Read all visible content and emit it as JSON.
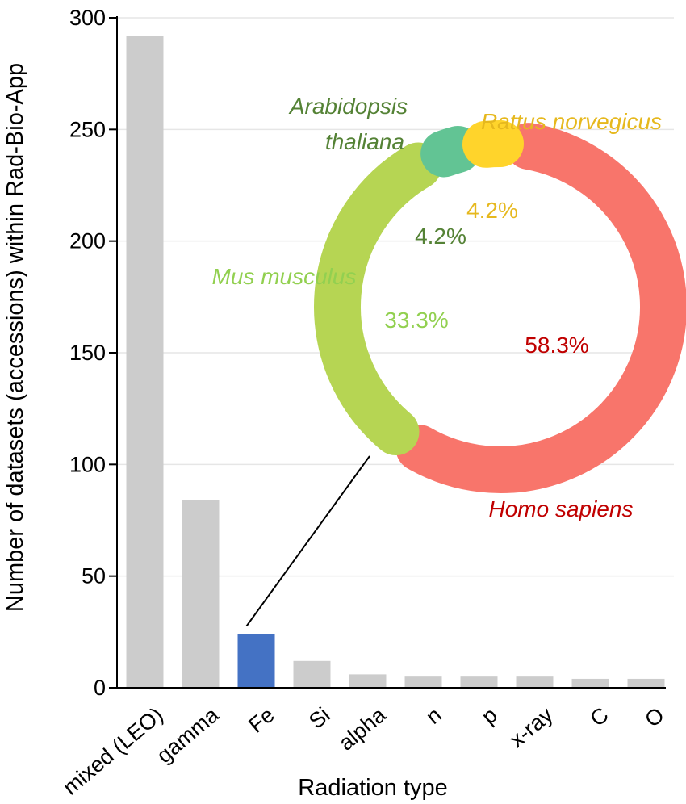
{
  "chart_data": [
    {
      "type": "bar",
      "xlabel": "Radiation type",
      "ylabel": "Number of datasets (accessions) within Rad-Bio-App",
      "categories": [
        "mixed (LEO)",
        "gamma",
        "Fe",
        "Si",
        "alpha",
        "n",
        "p",
        "x-ray",
        "C",
        "O"
      ],
      "values": [
        292,
        84,
        24,
        12,
        6,
        5,
        5,
        5,
        4,
        4
      ],
      "ylim": [
        0,
        300
      ],
      "yticks": [
        0,
        50,
        100,
        150,
        200,
        250,
        300
      ],
      "grid": true,
      "highlight": "Fe",
      "colors": {
        "bar": "#cccccc",
        "highlight": "#4472c4",
        "grid": "#e6e6e6"
      }
    },
    {
      "type": "pie",
      "style": "donut",
      "detail_of": "Fe",
      "slices": [
        {
          "label": "Homo sapiens",
          "value": 58.3,
          "value_label": "58.3%",
          "color": "#f8756b",
          "text_color": "#c00000"
        },
        {
          "label": "Mus musculus",
          "value": 33.3,
          "value_label": "33.3%",
          "color": "#b6d553",
          "text_color": "#92d050"
        },
        {
          "label": "Arabidopsis thaliana",
          "label_lines": [
            "Arabidopsis",
            "thaliana"
          ],
          "value": 4.2,
          "value_label": "4.2%",
          "color": "#62c494",
          "text_color": "#548235"
        },
        {
          "label": "Rattus norvegicus",
          "value": 4.2,
          "value_label": "4.2%",
          "color": "#ffd42b",
          "text_color": "#e6b81e"
        }
      ]
    }
  ]
}
